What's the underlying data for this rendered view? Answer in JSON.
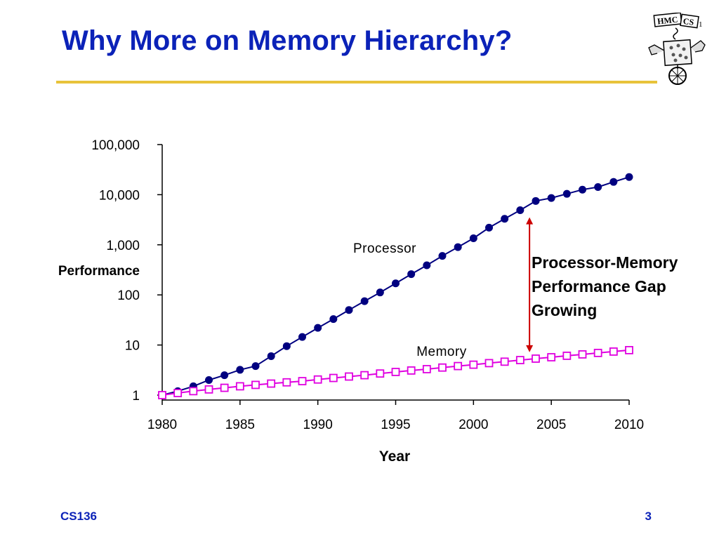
{
  "slide": {
    "title": "Why More on Memory Hierarchy?",
    "footer_left": "CS136",
    "page_number": "3",
    "logo_text_left": "HMC",
    "logo_text_right": "CS"
  },
  "chart_data": {
    "type": "line",
    "title": "",
    "xlabel": "Year",
    "ylabel": "Performance",
    "yscale": "log",
    "xlim": [
      1980,
      2010
    ],
    "ylim": [
      1,
      100000
    ],
    "x_ticks": [
      "1980",
      "1985",
      "1990",
      "1995",
      "2000",
      "2005",
      "2010"
    ],
    "y_ticks": [
      "100,000",
      "10,000",
      "1,000",
      "100",
      "10",
      "1"
    ],
    "x": [
      1980,
      1981,
      1982,
      1983,
      1984,
      1985,
      1986,
      1987,
      1988,
      1989,
      1990,
      1991,
      1992,
      1993,
      1994,
      1995,
      1996,
      1997,
      1998,
      1999,
      2000,
      2001,
      2002,
      2003,
      2004,
      2005,
      2006,
      2007,
      2008,
      2009,
      2010
    ],
    "series": [
      {
        "name": "Processor",
        "color": "#000080",
        "marker": "filled-circle",
        "values": [
          1,
          1.2,
          1.5,
          2,
          2.5,
          3.2,
          3.8,
          6,
          9.5,
          14.5,
          22,
          33,
          50,
          75,
          112,
          170,
          260,
          390,
          600,
          900,
          1350,
          2200,
          3300,
          4900,
          7500,
          8600,
          10400,
          12600,
          14200,
          18000,
          22500
        ]
      },
      {
        "name": "Memory",
        "color": "#e000e0",
        "marker": "hollow-square",
        "values": [
          1,
          1.1,
          1.2,
          1.3,
          1.4,
          1.5,
          1.6,
          1.7,
          1.8,
          1.9,
          2.05,
          2.2,
          2.35,
          2.5,
          2.7,
          2.9,
          3.1,
          3.3,
          3.55,
          3.8,
          4.05,
          4.35,
          4.65,
          5.0,
          5.35,
          5.7,
          6.1,
          6.5,
          6.95,
          7.4,
          7.9
        ]
      }
    ],
    "annotation": {
      "lines": [
        "Processor-Memory",
        "Performance Gap",
        "Growing"
      ],
      "year": 2003.6,
      "color": "#cc0000"
    }
  }
}
